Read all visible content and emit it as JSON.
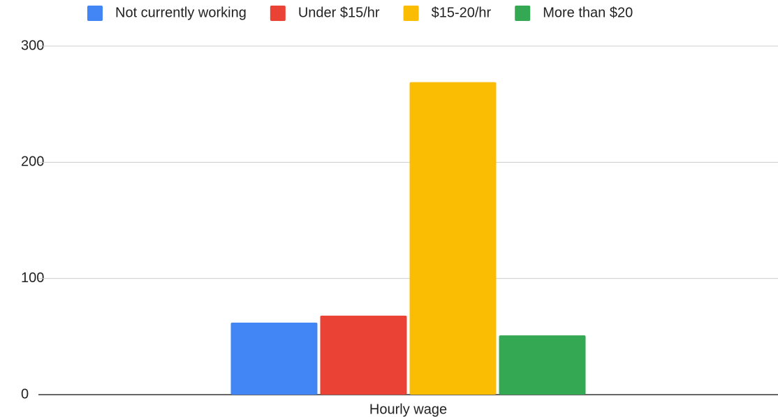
{
  "chart_data": {
    "type": "bar",
    "categories": [
      "Hourly wage"
    ],
    "series": [
      {
        "name": "Not currently working",
        "color": "#4285f4",
        "values": [
          62
        ]
      },
      {
        "name": "Under $15/hr",
        "color": "#ea4335",
        "values": [
          68
        ]
      },
      {
        "name": "$15-20/hr",
        "color": "#fbbc04",
        "values": [
          269
        ]
      },
      {
        "name": "More than $20",
        "color": "#34a853",
        "values": [
          51
        ]
      }
    ],
    "ylim": [
      0,
      300
    ],
    "yticks": [
      0,
      100,
      200,
      300
    ],
    "grid": true,
    "legend": "top"
  }
}
